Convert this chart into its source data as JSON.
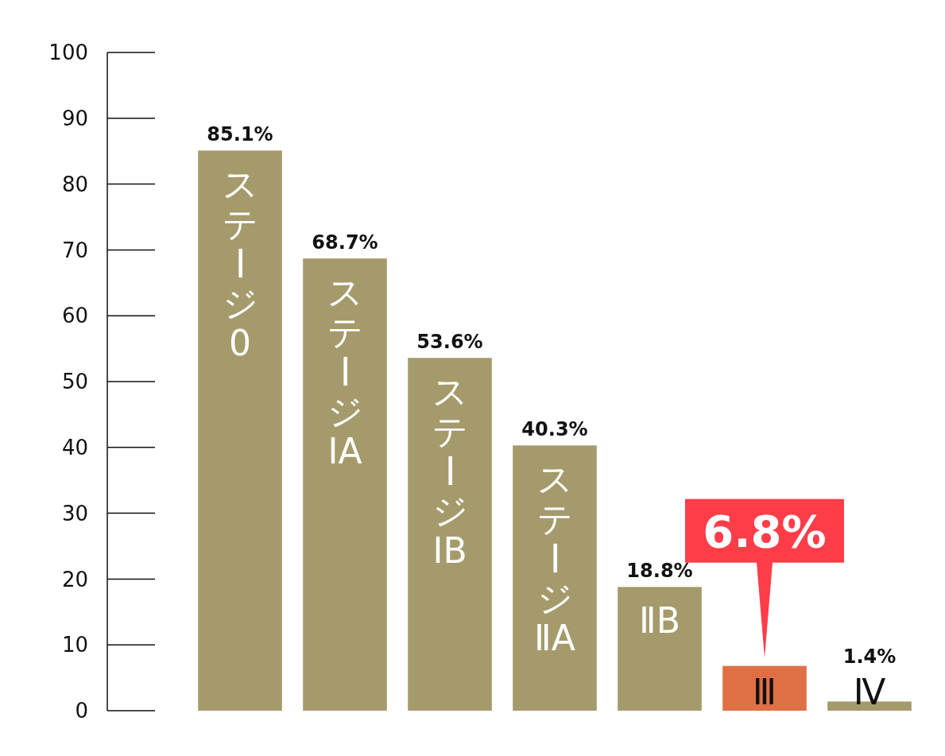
{
  "chart_data": {
    "type": "bar",
    "categories": [
      "ステージ0",
      "ステージⅠA",
      "ステージⅠB",
      "ステージⅡA",
      "ⅡB",
      "Ⅲ",
      "Ⅳ"
    ],
    "values": [
      85.1,
      68.7,
      53.6,
      40.3,
      18.8,
      6.8,
      1.4
    ],
    "colors": [
      "#a59a6b",
      "#a59a6b",
      "#a59a6b",
      "#a59a6b",
      "#a59a6b",
      "#df6f45",
      "#a59a6b"
    ],
    "value_labels": [
      "85.1%",
      "68.7%",
      "53.6%",
      "40.3%",
      "18.8%",
      "6.8%",
      "1.4%"
    ],
    "ylim": [
      0,
      100
    ],
    "yticks": [
      0,
      10,
      20,
      30,
      40,
      50,
      60,
      70,
      80,
      90,
      100
    ],
    "grid": false
  }
}
